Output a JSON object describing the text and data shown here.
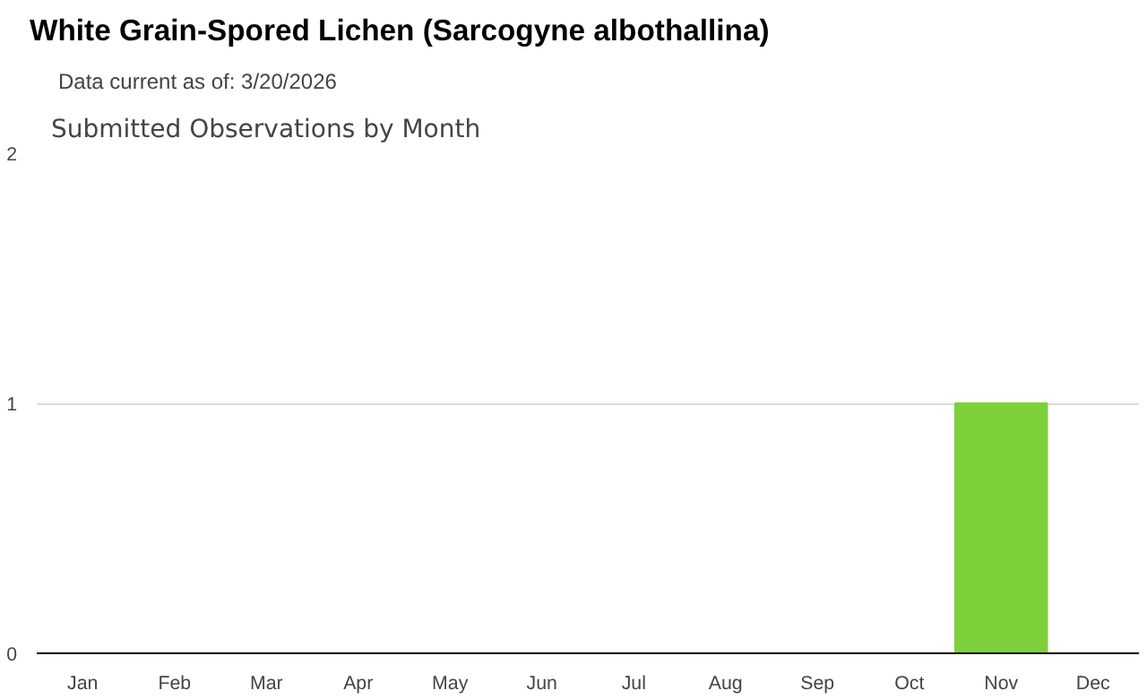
{
  "chart_data": {
    "type": "bar",
    "title": "White Grain-Spored Lichen   (Sarcogyne albothallina)",
    "subtitle": "Data current as of: 3/20/2026",
    "annotations": [
      "Submitted Observations by Month"
    ],
    "categories": [
      "Jan",
      "Feb",
      "Mar",
      "Apr",
      "May",
      "Jun",
      "Jul",
      "Aug",
      "Sep",
      "Oct",
      "Nov",
      "Dec"
    ],
    "values": [
      0,
      0,
      0,
      0,
      0,
      0,
      0,
      0,
      0,
      0,
      1,
      0
    ],
    "color": "#7ed03a",
    "ylim": [
      0,
      2
    ],
    "yticks": [
      0,
      1,
      2
    ],
    "grid": "y"
  }
}
